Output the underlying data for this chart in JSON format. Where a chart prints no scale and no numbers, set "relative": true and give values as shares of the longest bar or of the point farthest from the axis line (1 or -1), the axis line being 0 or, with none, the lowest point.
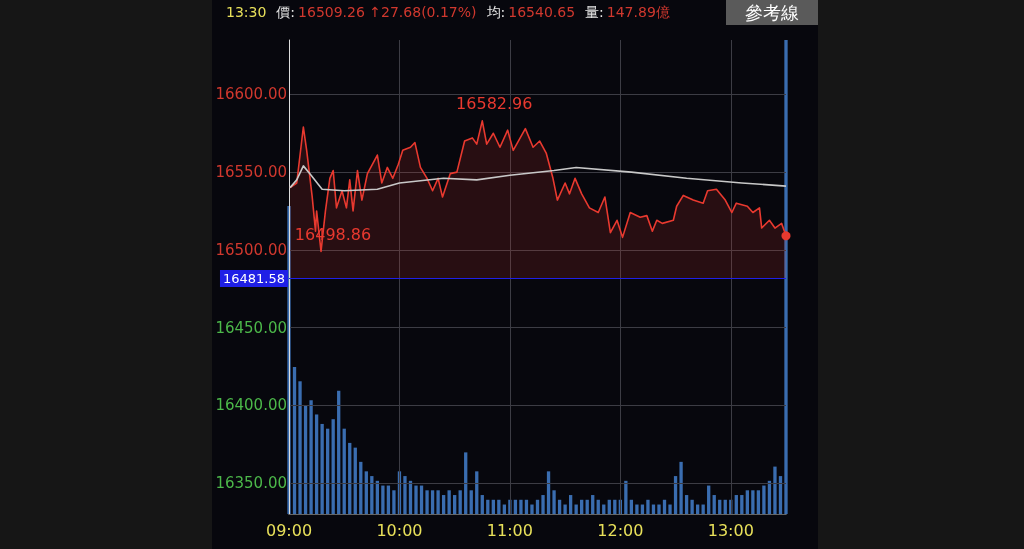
{
  "chart_data": [
    {
      "type": "line",
      "subtitle": "參考線",
      "annotations": [
        "13:30",
        "價:",
        "16509.26 ↑27.68(0.17%)",
        "均:",
        "16540.65",
        "量:",
        "147.89億",
        {
          "text": "16582.96",
          "x": 10.75,
          "y": 16582.96
        },
        {
          "text": "16498.86",
          "x": 9.29,
          "y": 16498.86
        }
      ],
      "xlim": [
        9,
        13.5
      ],
      "xticks": [
        {
          "value": 9,
          "label": "09:00"
        },
        {
          "value": 10,
          "label": "10:00"
        },
        {
          "value": 11,
          "label": "11:00"
        },
        {
          "value": 12,
          "label": "12:00"
        },
        {
          "value": 13,
          "label": "13:00"
        }
      ],
      "ylim": [
        16330,
        16635
      ],
      "yticks": [
        {
          "value": 16350,
          "label": "16350.00"
        },
        {
          "value": 16400,
          "label": "16400.00"
        },
        {
          "value": 16450,
          "label": "16450.00"
        },
        {
          "value": 16500,
          "label": "16500.00"
        },
        {
          "value": 16550,
          "label": "16550.00"
        },
        {
          "value": 16600,
          "label": "16600.00"
        }
      ],
      "grid": true,
      "ref_lines": [
        {
          "axis": "y",
          "value": 16481.58,
          "label": "16481.58",
          "color": "#1f1fe6"
        }
      ],
      "series": [
        {
          "type": "area",
          "color": "#e8392f",
          "x": [
            9.01,
            9.07,
            9.13,
            9.16,
            9.21,
            9.24,
            9.25,
            9.29,
            9.33,
            9.37,
            9.4,
            9.43,
            9.48,
            9.52,
            9.55,
            9.58,
            9.62,
            9.66,
            9.71,
            9.8,
            9.84,
            9.89,
            9.94,
            9.99,
            10.03,
            10.1,
            10.14,
            10.19,
            10.25,
            10.3,
            10.35,
            10.39,
            10.46,
            10.52,
            10.59,
            10.66,
            10.7,
            10.75,
            10.79,
            10.85,
            10.91,
            10.98,
            11.03,
            11.14,
            11.21,
            11.27,
            11.33,
            11.39,
            11.43,
            11.5,
            11.54,
            11.59,
            11.65,
            11.72,
            11.8,
            11.86,
            11.91,
            11.97,
            12.02,
            12.09,
            12.18,
            12.24,
            12.29,
            12.33,
            12.38,
            12.48,
            12.51,
            12.57,
            12.66,
            12.75,
            12.79,
            12.87,
            12.95,
            13.01,
            13.05,
            13.15,
            13.2,
            13.26,
            13.28,
            13.35,
            13.4,
            13.46,
            13.5
          ],
          "values": [
            16540,
            16543,
            16579,
            16564,
            16534,
            16512,
            16525,
            16499,
            16525,
            16546,
            16551,
            16527,
            16538,
            16527,
            16545,
            16525,
            16551,
            16532,
            16549,
            16561,
            16543,
            16553,
            16546,
            16555,
            16564,
            16566,
            16569,
            16553,
            16546,
            16538,
            16546,
            16534,
            16549,
            16550,
            16570,
            16572,
            16568,
            16583,
            16568,
            16575,
            16566,
            16577,
            16564,
            16578,
            16566,
            16570,
            16562,
            16546,
            16532,
            16543,
            16536,
            16546,
            16536,
            16527,
            16524,
            16534,
            16511,
            16519,
            16508,
            16524,
            16521,
            16522,
            16512,
            16519,
            16517,
            16519,
            16528,
            16535,
            16532,
            16530,
            16538,
            16539,
            16532,
            16524,
            16530,
            16528,
            16524,
            16527,
            16514,
            16519,
            16514,
            16517,
            16509
          ]
        },
        {
          "type": "line",
          "color": "#c8c8c8",
          "x": [
            9.01,
            9.07,
            9.13,
            9.2,
            9.3,
            9.5,
            9.8,
            10,
            10.4,
            10.7,
            11,
            11.4,
            11.6,
            12.1,
            12.6,
            13.1,
            13.5
          ],
          "values": [
            16540,
            16545,
            16554,
            16548,
            16539,
            16538,
            16539,
            16543,
            16546,
            16545,
            16548,
            16551,
            16553,
            16550,
            16546,
            16543,
            16541
          ]
        }
      ]
    },
    {
      "type": "bar",
      "relative": true,
      "color": "#3a6db0",
      "categories": [
        null,
        null,
        null,
        null,
        null,
        null,
        null,
        null,
        null,
        null,
        null,
        null,
        null,
        null,
        null,
        null,
        null,
        null,
        null,
        null,
        null,
        null,
        null,
        null,
        null,
        null,
        null,
        null,
        null,
        null,
        null,
        null,
        null,
        null,
        null,
        null,
        null,
        null,
        null,
        null,
        null,
        null,
        null,
        null,
        null,
        null,
        null,
        null,
        null,
        null,
        null,
        null,
        null,
        null,
        null,
        null,
        null,
        null,
        null,
        null,
        null,
        null,
        null,
        null,
        null,
        null,
        null,
        null,
        null,
        null,
        null,
        null,
        null,
        null,
        null,
        null,
        null,
        null,
        null,
        null,
        null,
        null,
        null,
        null,
        null,
        null,
        null,
        null,
        null,
        null,
        null
      ],
      "values": [
        0.65,
        0.31,
        0.28,
        0.23,
        0.24,
        0.21,
        0.19,
        0.18,
        0.2,
        0.26,
        0.18,
        0.15,
        0.14,
        0.11,
        0.09,
        0.08,
        0.07,
        0.06,
        0.06,
        0.05,
        0.09,
        0.08,
        0.07,
        0.06,
        0.06,
        0.05,
        0.05,
        0.05,
        0.04,
        0.05,
        0.04,
        0.05,
        0.13,
        0.05,
        0.09,
        0.04,
        0.03,
        0.03,
        0.03,
        0.02,
        0.03,
        0.03,
        0.03,
        0.03,
        0.02,
        0.03,
        0.04,
        0.09,
        0.05,
        0.03,
        0.02,
        0.04,
        0.02,
        0.03,
        0.03,
        0.04,
        0.03,
        0.02,
        0.03,
        0.03,
        0.03,
        0.07,
        0.03,
        0.02,
        0.02,
        0.03,
        0.02,
        0.02,
        0.03,
        0.02,
        0.08,
        0.11,
        0.04,
        0.03,
        0.02,
        0.02,
        0.06,
        0.04,
        0.03,
        0.03,
        0.03,
        0.04,
        0.04,
        0.05,
        0.05,
        0.05,
        0.06,
        0.07,
        0.1,
        0.08,
        1
      ]
    }
  ]
}
